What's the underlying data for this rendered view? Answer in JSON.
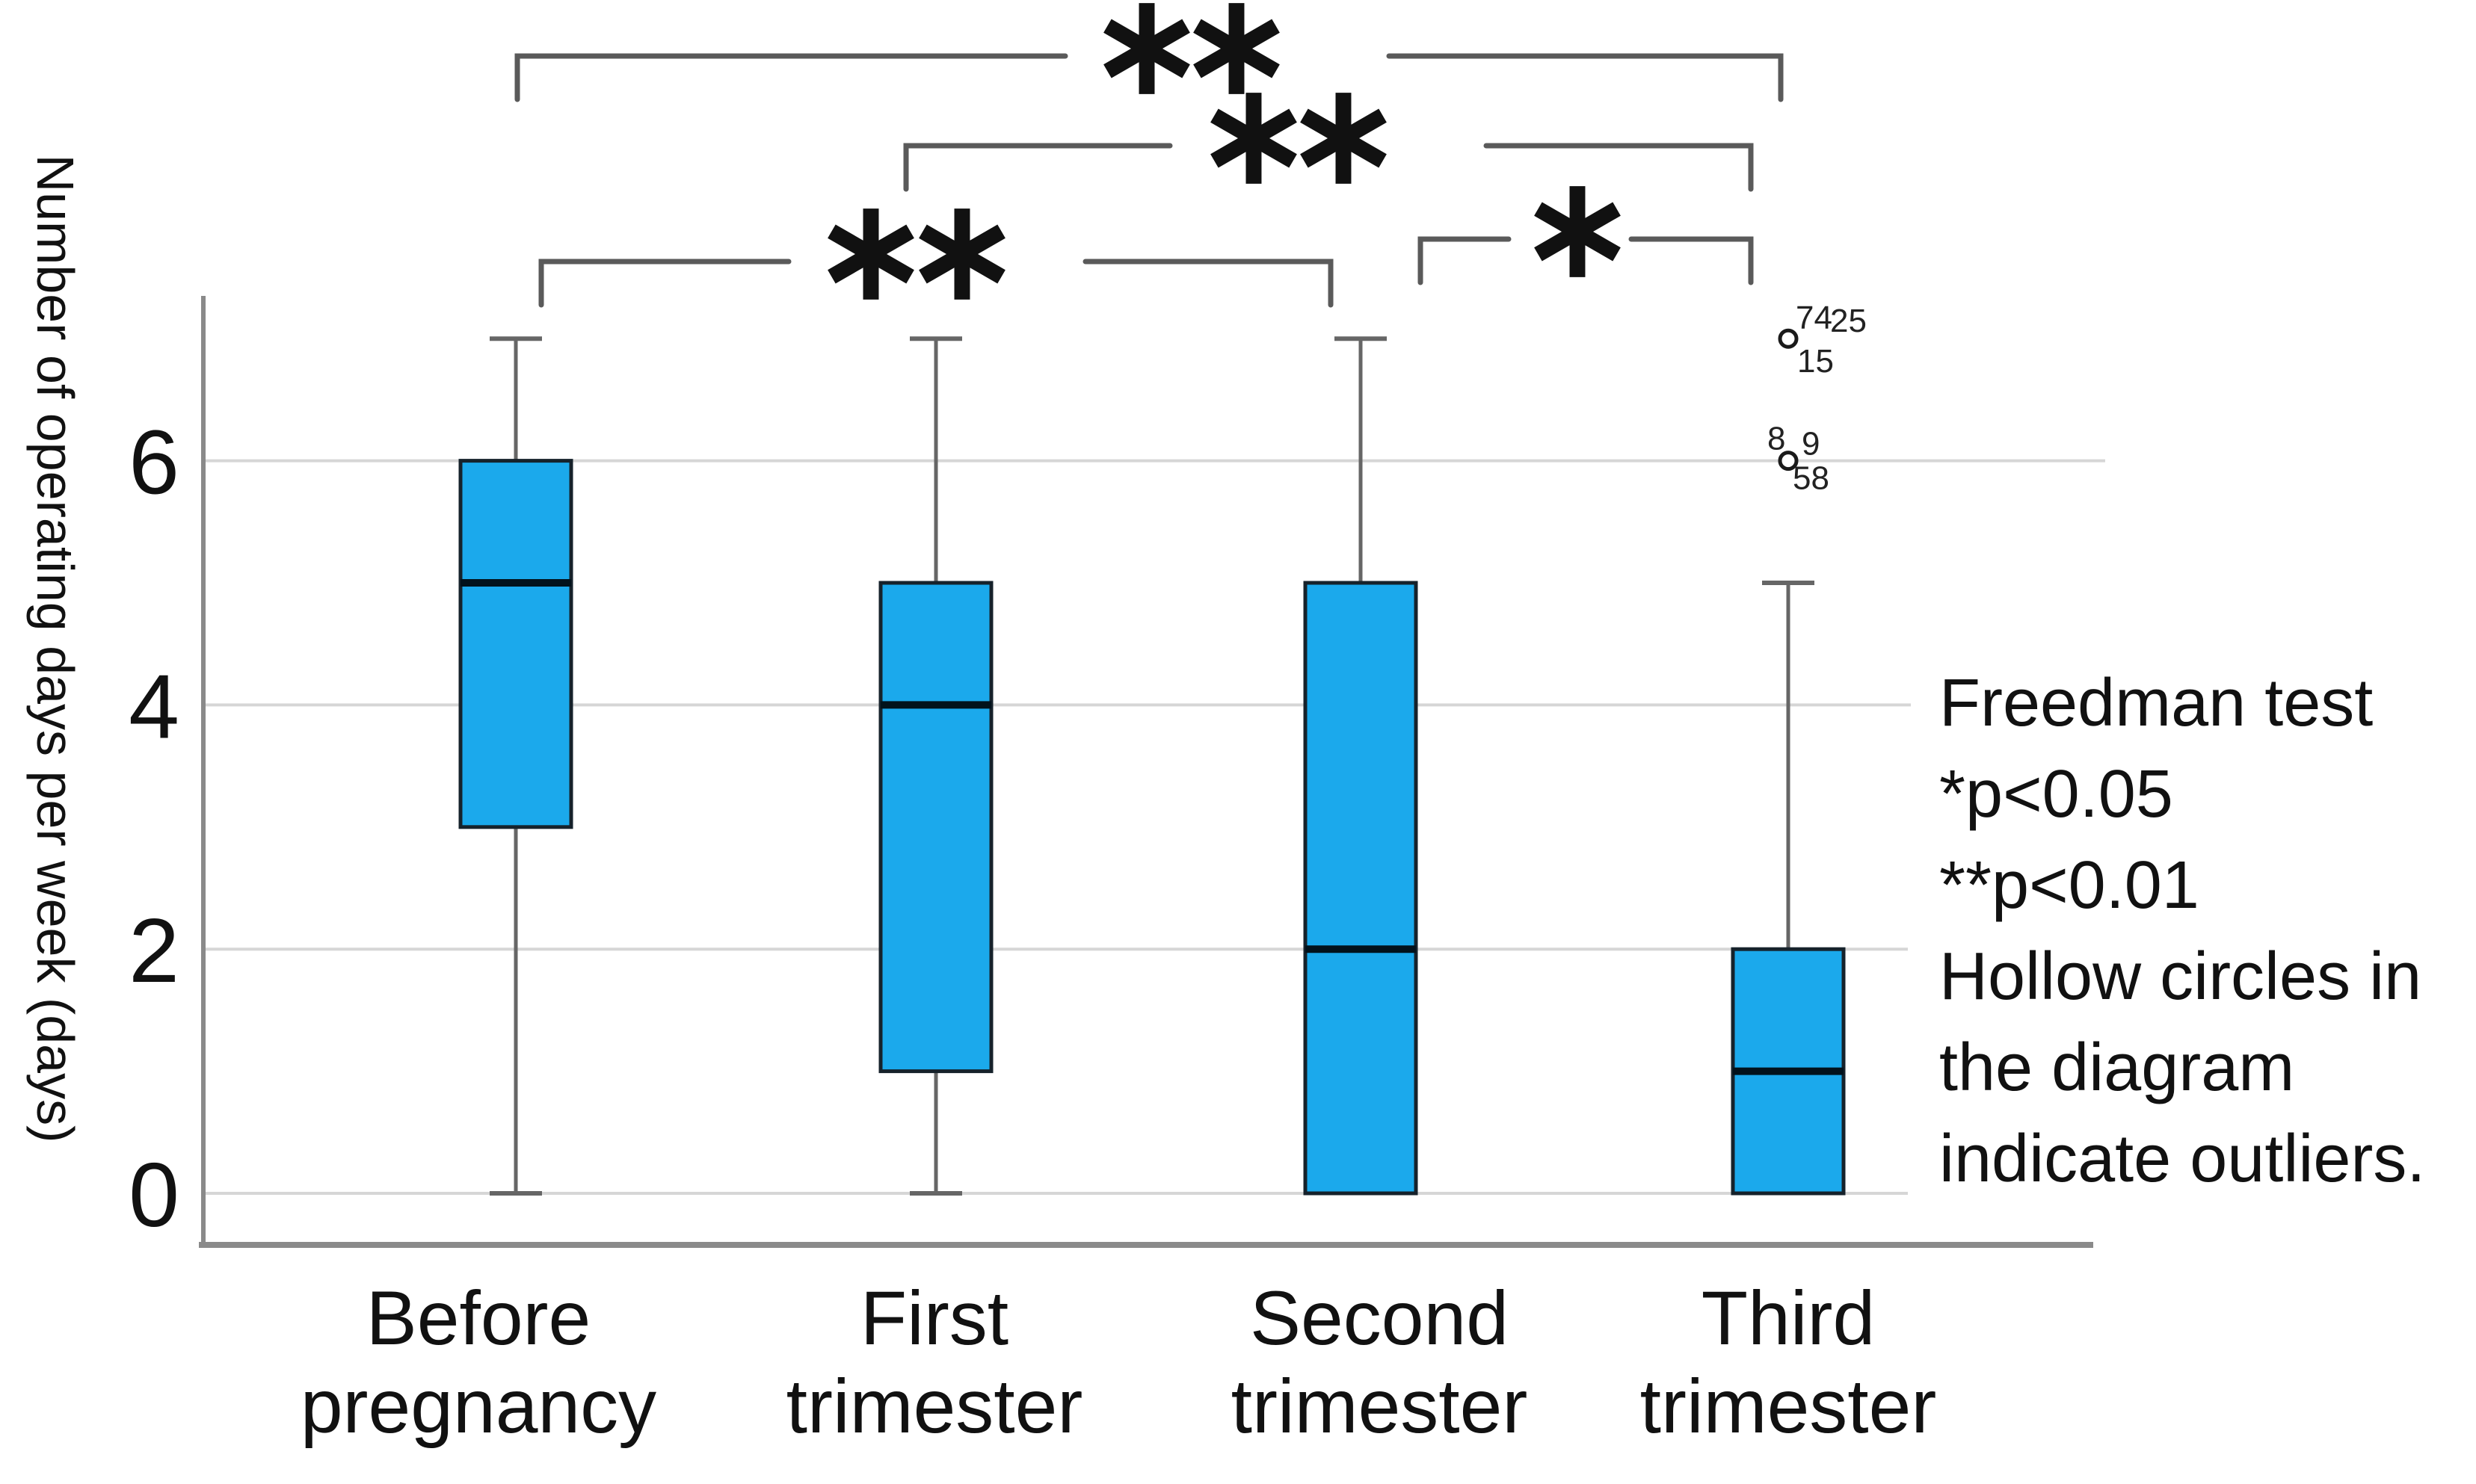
{
  "figure": {
    "y_axis_label": "Number of operating days per week (days)",
    "annotation_lines": [
      "Freedman test",
      "*p<0.05",
      "**p<0.01",
      "Hollow circles in",
      "the diagram",
      "indicate outliers."
    ]
  },
  "chart_data": {
    "type": "boxplot",
    "title": "",
    "xlabel": "",
    "ylabel": "Number of operating days per week (days)",
    "ylim": [
      0,
      7.5
    ],
    "yticks": [
      0,
      2,
      4,
      6
    ],
    "grid": true,
    "legend_position": "right",
    "categories": [
      "Before pregnancy",
      "First trimester",
      "Second trimester",
      "Third trimester"
    ],
    "category_label_lines": [
      [
        "Before",
        "pregnancy"
      ],
      [
        "First",
        "trimester"
      ],
      [
        "Second",
        "trimester"
      ],
      [
        "Third",
        "trimester"
      ]
    ],
    "boxes": [
      {
        "category": "Before pregnancy",
        "whisker_low": 0,
        "q1": 3,
        "median": 5,
        "q3": 6,
        "whisker_high": 7,
        "outliers": []
      },
      {
        "category": "First trimester",
        "whisker_low": 0,
        "q1": 1,
        "median": 4,
        "q3": 5,
        "whisker_high": 7,
        "outliers": []
      },
      {
        "category": "Second trimester",
        "whisker_low": 0,
        "q1": 0,
        "median": 2,
        "q3": 5,
        "whisker_high": 7,
        "outliers": []
      },
      {
        "category": "Third trimester",
        "whisker_low": 0,
        "q1": 0,
        "median": 1,
        "q3": 2,
        "whisker_high": 5,
        "outliers": [
          {
            "value": 7,
            "case_labels": [
              "74",
              "25",
              "15"
            ]
          },
          {
            "value": 6,
            "case_labels": [
              "8",
              "9",
              "58"
            ]
          }
        ]
      }
    ],
    "significance": [
      {
        "between": [
          "Before pregnancy",
          "Third trimester"
        ],
        "stars": "**"
      },
      {
        "between": [
          "First trimester",
          "Third trimester"
        ],
        "stars": "**"
      },
      {
        "between": [
          "Before pregnancy",
          "Second trimester"
        ],
        "stars": "**"
      },
      {
        "between": [
          "Second trimester",
          "Third trimester"
        ],
        "stars": "*"
      }
    ],
    "annotation": "Freedman test *p<0.05 **p<0.01 Hollow circles in the diagram indicate outliers.",
    "colors": {
      "box_fill": "#1BA9EC",
      "box_border": "#16222B",
      "median": "#02121C",
      "whisker": "#666666",
      "grid": "#D6D6D6",
      "axis": "#8A8A8A",
      "bracket": "#5A5A5A",
      "text": "#111111",
      "outlier_stroke": "#1A1A1A",
      "background": "#FFFFFF"
    }
  }
}
